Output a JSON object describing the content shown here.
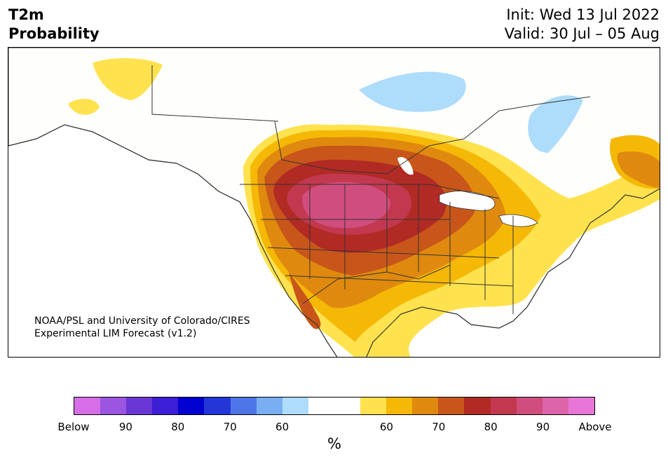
{
  "title": {
    "line1": "T2m",
    "line2": "Probability"
  },
  "forecast": {
    "init": "Init: Wed 13 Jul 2022",
    "valid": "Valid: 30 Jul – 05 Aug"
  },
  "credit": {
    "line1": "NOAA/PSL and University of Colorado/CIRES",
    "line2": "Experimental LIM Forecast (v1.2)"
  },
  "colorbar": {
    "unit": "%",
    "colors": [
      "#d66ee8",
      "#9b55e0",
      "#6b36d6",
      "#3b1ed6",
      "#0000d0",
      "#2436d8",
      "#4f76e8",
      "#78aef2",
      "#aedcfb",
      "#ffffff",
      "#ffffff",
      "#ffe24e",
      "#f5b807",
      "#df8a0e",
      "#c8561a",
      "#b12a24",
      "#c2384f",
      "#d04e7e",
      "#dd64a9",
      "#e876d8"
    ],
    "labels": [
      "Below",
      "90",
      "80",
      "70",
      "60",
      "60",
      "70",
      "80",
      "90",
      "Above"
    ]
  },
  "map": {
    "land_color": "#fefefc",
    "boundary_color": "#333333"
  }
}
